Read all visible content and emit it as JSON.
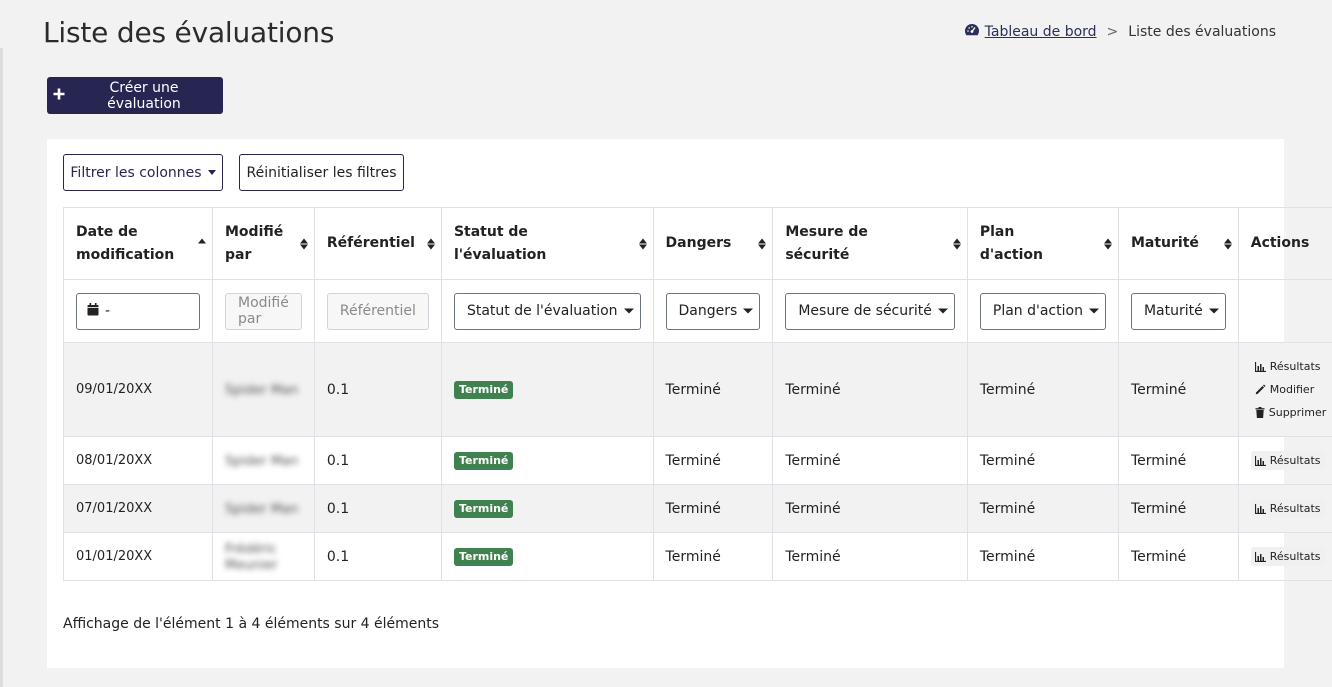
{
  "page": {
    "title": "Liste des évaluations"
  },
  "breadcrumb": {
    "home_label": "Tableau de bord",
    "separator": ">",
    "current": "Liste des évaluations"
  },
  "toolbar": {
    "create_label": "Créer une évaluation",
    "filter_columns_label": "Filtrer les colonnes",
    "reset_filters_label": "Réinitialiser les filtres"
  },
  "table": {
    "headers": [
      "Date de modification",
      "Modifié par",
      "Référentiel",
      "Statut de l'évaluation",
      "Dangers",
      "Mesure de sécurité",
      "Plan d'action",
      "Maturité",
      "Actions"
    ],
    "filters": {
      "date_value": "-",
      "modified_by_placeholder": "Modifié par",
      "referentiel_placeholder": "Référentiel",
      "statut_value": "Statut de l'évaluation",
      "dangers_value": "Dangers",
      "mesure_value": "Mesure de sécurité",
      "plan_value": "Plan d'action",
      "maturite_value": "Maturité"
    },
    "rows": [
      {
        "date": "09/01/20XX",
        "modified_by": "Spider Man",
        "referentiel": "0.1",
        "statut": "Terminé",
        "dangers": "Terminé",
        "mesure": "Terminé",
        "plan": "Terminé",
        "maturite": "Terminé",
        "actions": [
          "Résultats",
          "Modifier",
          "Supprimer"
        ]
      },
      {
        "date": "08/01/20XX",
        "modified_by": "Spider Man",
        "referentiel": "0.1",
        "statut": "Terminé",
        "dangers": "Terminé",
        "mesure": "Terminé",
        "plan": "Terminé",
        "maturite": "Terminé",
        "actions": [
          "Résultats"
        ]
      },
      {
        "date": "07/01/20XX",
        "modified_by": "Spider Man",
        "referentiel": "0.1",
        "statut": "Terminé",
        "dangers": "Terminé",
        "mesure": "Terminé",
        "plan": "Terminé",
        "maturite": "Terminé",
        "actions": [
          "Résultats"
        ]
      },
      {
        "date": "01/01/20XX",
        "modified_by": "Frédéric Meunier",
        "referentiel": "0.1",
        "statut": "Terminé",
        "dangers": "Terminé",
        "mesure": "Terminé",
        "plan": "Terminé",
        "maturite": "Terminé",
        "actions": [
          "Résultats"
        ]
      }
    ]
  },
  "footer": {
    "info": "Affichage de l'élément 1 à 4 éléments sur 4 éléments"
  },
  "colors": {
    "primary": "#272652",
    "success_badge": "#3f8250",
    "page_bg": "#f2f2f2",
    "stripe": "#f2f2f2"
  },
  "icons": {
    "breadcrumb": "dashboard-gauge-icon",
    "create": "plus-icon",
    "date": "calendar-icon",
    "results": "chart-icon",
    "edit": "pencil-icon",
    "delete": "trash-icon"
  }
}
